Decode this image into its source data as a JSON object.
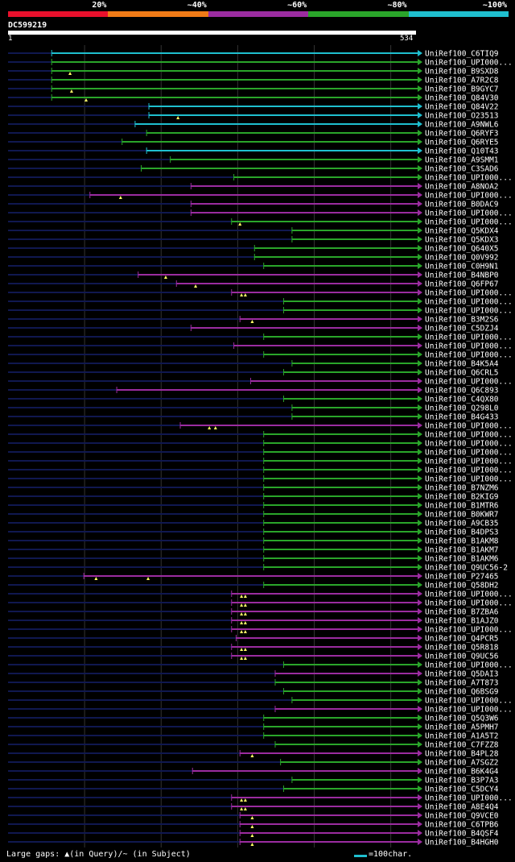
{
  "legend": {
    "labels": [
      "20%",
      "~40%",
      "~60%",
      "~80%",
      "~100%"
    ],
    "colors": [
      "#e8102c",
      "#f07b17",
      "#9b2ca0",
      "#2aa52a",
      "#1fbfcf"
    ]
  },
  "chart_data": {
    "type": "alignment",
    "query": {
      "id": "DC599219",
      "start": 1,
      "end": 534,
      "start_label": "1",
      "end_label": "534"
    },
    "color_by_identity": {
      "cyan": "#1fbfcf",
      "green": "#2aa52a",
      "purple": "#9b2ca0",
      "background": "#101850"
    },
    "hits": [
      {
        "label": "UniRef100_C6TIQ9",
        "start": 58,
        "color": "cyan",
        "gaps": []
      },
      {
        "label": "UniRef100_UPI000...",
        "start": 58,
        "color": "green",
        "gaps": []
      },
      {
        "label": "UniRef100_B9SXD8",
        "start": 58,
        "color": "green",
        "gaps": [
          82
        ]
      },
      {
        "label": "UniRef100_A7R2C8",
        "start": 58,
        "color": "green",
        "gaps": []
      },
      {
        "label": "UniRef100_B9GYC7",
        "start": 58,
        "color": "green",
        "gaps": [
          84
        ]
      },
      {
        "label": "UniRef100_Q84V30",
        "start": 58,
        "color": "green",
        "gaps": [
          103
        ]
      },
      {
        "label": "UniRef100_Q84V22",
        "start": 185,
        "color": "cyan",
        "gaps": []
      },
      {
        "label": "UniRef100_O23513",
        "start": 185,
        "color": "cyan",
        "gaps": [
          223
        ]
      },
      {
        "label": "UniRef100_A9NWL6",
        "start": 167,
        "color": "cyan",
        "gaps": []
      },
      {
        "label": "UniRef100_Q6RYF3",
        "start": 182,
        "color": "green",
        "gaps": []
      },
      {
        "label": "UniRef100_Q6RYE5",
        "start": 150,
        "color": "green",
        "gaps": []
      },
      {
        "label": "UniRef100_Q10T43",
        "start": 182,
        "color": "cyan",
        "gaps": []
      },
      {
        "label": "UniRef100_A9SMM1",
        "start": 213,
        "color": "green",
        "gaps": []
      },
      {
        "label": "UniRef100_C3SAD6",
        "start": 175,
        "color": "green",
        "gaps": []
      },
      {
        "label": "UniRef100_UPI000...",
        "start": 296,
        "color": "green",
        "gaps": []
      },
      {
        "label": "UniRef100_A8NOA2",
        "start": 240,
        "color": "purple",
        "gaps": []
      },
      {
        "label": "UniRef100_UPI000...",
        "start": 108,
        "color": "purple",
        "gaps": [
          148
        ]
      },
      {
        "label": "UniRef100_B0DAC9",
        "start": 240,
        "color": "purple",
        "gaps": []
      },
      {
        "label": "UniRef100_UPI000...",
        "start": 240,
        "color": "purple",
        "gaps": []
      },
      {
        "label": "UniRef100_UPI000...",
        "start": 293,
        "color": "green",
        "gaps": [
          304
        ]
      },
      {
        "label": "UniRef100_Q5KDX4",
        "start": 372,
        "color": "green",
        "gaps": []
      },
      {
        "label": "UniRef100_Q5KDX3",
        "start": 372,
        "color": "green",
        "gaps": []
      },
      {
        "label": "UniRef100_Q640X5",
        "start": 323,
        "color": "green",
        "gaps": []
      },
      {
        "label": "UniRef100_Q0V992",
        "start": 323,
        "color": "green",
        "gaps": []
      },
      {
        "label": "UniRef100_C0H9N1",
        "start": 335,
        "color": "green",
        "gaps": []
      },
      {
        "label": "UniRef100_B4NBP0",
        "start": 171,
        "color": "purple",
        "gaps": [
          207
        ]
      },
      {
        "label": "UniRef100_Q6FP67",
        "start": 221,
        "color": "purple",
        "gaps": [
          246
        ]
      },
      {
        "label": "UniRef100_UPI000...",
        "start": 293,
        "color": "purple",
        "gaps": [
          306,
          311
        ]
      },
      {
        "label": "UniRef100_UPI000...",
        "start": 361,
        "color": "green",
        "gaps": []
      },
      {
        "label": "UniRef100_UPI000...",
        "start": 361,
        "color": "green",
        "gaps": []
      },
      {
        "label": "UniRef100_B3M2S6",
        "start": 304,
        "color": "purple",
        "gaps": [
          320
        ]
      },
      {
        "label": "UniRef100_C5DZJ4",
        "start": 240,
        "color": "purple",
        "gaps": []
      },
      {
        "label": "UniRef100_UPI000...",
        "start": 335,
        "color": "green",
        "gaps": []
      },
      {
        "label": "UniRef100_UPI000...",
        "start": 296,
        "color": "purple",
        "gaps": []
      },
      {
        "label": "UniRef100_UPI000...",
        "start": 335,
        "color": "green",
        "gaps": []
      },
      {
        "label": "UniRef100_B4K5A4",
        "start": 372,
        "color": "green",
        "gaps": []
      },
      {
        "label": "UniRef100_Q6CRL5",
        "start": 361,
        "color": "green",
        "gaps": []
      },
      {
        "label": "UniRef100_UPI000...",
        "start": 318,
        "color": "purple",
        "gaps": []
      },
      {
        "label": "UniRef100_Q6C893",
        "start": 143,
        "color": "purple",
        "gaps": []
      },
      {
        "label": "UniRef100_C4QX80",
        "start": 361,
        "color": "green",
        "gaps": []
      },
      {
        "label": "UniRef100_Q298L0",
        "start": 372,
        "color": "green",
        "gaps": []
      },
      {
        "label": "UniRef100_B4G433",
        "start": 372,
        "color": "green",
        "gaps": []
      },
      {
        "label": "UniRef100_UPI000...",
        "start": 226,
        "color": "purple",
        "gaps": [
          264,
          272
        ]
      },
      {
        "label": "UniRef100_UPI000...",
        "start": 335,
        "color": "green",
        "gaps": []
      },
      {
        "label": "UniRef100_UPI000...",
        "start": 335,
        "color": "green",
        "gaps": []
      },
      {
        "label": "UniRef100_UPI000...",
        "start": 335,
        "color": "green",
        "gaps": []
      },
      {
        "label": "UniRef100_UPI000...",
        "start": 335,
        "color": "green",
        "gaps": []
      },
      {
        "label": "UniRef100_UPI000...",
        "start": 335,
        "color": "green",
        "gaps": []
      },
      {
        "label": "UniRef100_UPI000...",
        "start": 335,
        "color": "green",
        "gaps": []
      },
      {
        "label": "UniRef100_B7NZM6",
        "start": 335,
        "color": "green",
        "gaps": []
      },
      {
        "label": "UniRef100_B2KIG9",
        "start": 335,
        "color": "green",
        "gaps": []
      },
      {
        "label": "UniRef100_B1MTR6",
        "start": 335,
        "color": "green",
        "gaps": []
      },
      {
        "label": "UniRef100_B0KWR7",
        "start": 335,
        "color": "green",
        "gaps": []
      },
      {
        "label": "UniRef100_A9CB35",
        "start": 335,
        "color": "green",
        "gaps": []
      },
      {
        "label": "UniRef100_B4DPS3",
        "start": 335,
        "color": "green",
        "gaps": []
      },
      {
        "label": "UniRef100_B1AKM8",
        "start": 335,
        "color": "green",
        "gaps": []
      },
      {
        "label": "UniRef100_B1AKM7",
        "start": 335,
        "color": "green",
        "gaps": []
      },
      {
        "label": "UniRef100_B1AKM6",
        "start": 335,
        "color": "green",
        "gaps": []
      },
      {
        "label": "UniRef100_Q9UC56-2",
        "start": 335,
        "color": "green",
        "gaps": []
      },
      {
        "label": "UniRef100_P27465",
        "start": 100,
        "color": "purple",
        "gaps": [
          116,
          184
        ]
      },
      {
        "label": "UniRef100_Q58DH2",
        "start": 335,
        "color": "green",
        "gaps": []
      },
      {
        "label": "UniRef100_UPI000...",
        "start": 293,
        "color": "purple",
        "gaps": [
          306,
          311
        ]
      },
      {
        "label": "UniRef100_UPI000...",
        "start": 293,
        "color": "purple",
        "gaps": [
          306,
          311
        ]
      },
      {
        "label": "UniRef100_B7ZBA6",
        "start": 293,
        "color": "purple",
        "gaps": [
          306,
          311
        ]
      },
      {
        "label": "UniRef100_B1AJZ0",
        "start": 293,
        "color": "purple",
        "gaps": [
          306,
          311
        ]
      },
      {
        "label": "UniRef100_UPI000...",
        "start": 293,
        "color": "purple",
        "gaps": [
          306,
          311
        ]
      },
      {
        "label": "UniRef100_Q4PCR5",
        "start": 299,
        "color": "purple",
        "gaps": []
      },
      {
        "label": "UniRef100_Q5R818",
        "start": 293,
        "color": "purple",
        "gaps": [
          306,
          311
        ]
      },
      {
        "label": "UniRef100_Q9UC56",
        "start": 293,
        "color": "purple",
        "gaps": [
          306,
          311
        ]
      },
      {
        "label": "UniRef100_UPI000...",
        "start": 361,
        "color": "green",
        "gaps": []
      },
      {
        "label": "UniRef100_Q5DAI3",
        "start": 350,
        "color": "purple",
        "gaps": []
      },
      {
        "label": "UniRef100_A7T873",
        "start": 350,
        "color": "green",
        "gaps": []
      },
      {
        "label": "UniRef100_Q6BSG9",
        "start": 361,
        "color": "green",
        "gaps": []
      },
      {
        "label": "UniRef100_UPI000...",
        "start": 372,
        "color": "green",
        "gaps": []
      },
      {
        "label": "UniRef100_UPI000...",
        "start": 350,
        "color": "purple",
        "gaps": []
      },
      {
        "label": "UniRef100_Q5Q3W6",
        "start": 335,
        "color": "green",
        "gaps": []
      },
      {
        "label": "UniRef100_A5PMH7",
        "start": 335,
        "color": "green",
        "gaps": []
      },
      {
        "label": "UniRef100_A1A5T2",
        "start": 335,
        "color": "green",
        "gaps": []
      },
      {
        "label": "UniRef100_C7FZZ8",
        "start": 350,
        "color": "green",
        "gaps": []
      },
      {
        "label": "UniRef100_B4PL28",
        "start": 304,
        "color": "purple",
        "gaps": [
          320
        ]
      },
      {
        "label": "UniRef100_A7SGZ2",
        "start": 357,
        "color": "green",
        "gaps": []
      },
      {
        "label": "UniRef100_B6K4G4",
        "start": 242,
        "color": "purple",
        "gaps": []
      },
      {
        "label": "UniRef100_B3P7A3",
        "start": 372,
        "color": "green",
        "gaps": []
      },
      {
        "label": "UniRef100_C5DCY4",
        "start": 361,
        "color": "green",
        "gaps": []
      },
      {
        "label": "UniRef100_UPI000...",
        "start": 293,
        "color": "purple",
        "gaps": [
          306,
          311
        ]
      },
      {
        "label": "UniRef100_A8E4Q4",
        "start": 293,
        "color": "purple",
        "gaps": [
          306,
          311
        ]
      },
      {
        "label": "UniRef100_Q9VCE0",
        "start": 304,
        "color": "purple",
        "gaps": [
          320
        ]
      },
      {
        "label": "UniRef100_C6TPB6",
        "start": 304,
        "color": "purple",
        "gaps": [
          320
        ]
      },
      {
        "label": "UniRef100_B4QSF4",
        "start": 304,
        "color": "purple",
        "gaps": [
          320
        ]
      },
      {
        "label": "UniRef100_B4HGH0",
        "start": 304,
        "color": "purple",
        "gaps": [
          320
        ]
      }
    ]
  },
  "footer": {
    "large_gaps": "Large gaps: ▲(in Query)/~ (in Subject)",
    "scale": "=100char."
  }
}
